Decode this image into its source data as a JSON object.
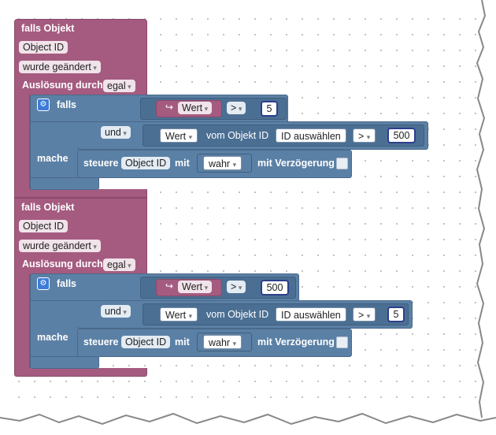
{
  "blocks": [
    {
      "falls_objekt": "falls Objekt",
      "object_id": "Object ID",
      "wurde_geaendert": "wurde geändert",
      "ausloesung_label": "Auslösung durch",
      "ausloesung_value": "egal",
      "falls": "falls",
      "wert1": "Wert",
      "op1": ">",
      "num1": "5",
      "und": "und",
      "wert2": "Wert",
      "vom_objekt": "vom Objekt ID",
      "id_auswaehlen": "ID auswählen",
      "op2": ">",
      "num2": "500",
      "mache": "mache",
      "steuere": "steuere",
      "steuere_object_id": "Object ID",
      "mit": "mit",
      "wahr": "wahr",
      "mit_verzoegerung": "mit Verzögerung"
    },
    {
      "falls_objekt": "falls Objekt",
      "object_id": "Object ID",
      "wurde_geaendert": "wurde geändert",
      "ausloesung_label": "Auslösung durch",
      "ausloesung_value": "egal",
      "falls": "falls",
      "wert1": "Wert",
      "op1": ">",
      "num1": "500",
      "und": "und",
      "wert2": "Wert",
      "vom_objekt": "vom Objekt ID",
      "id_auswaehlen": "ID auswählen",
      "op2": ">",
      "num2": "5",
      "mache": "mache",
      "steuere": "steuere",
      "steuere_object_id": "Object ID",
      "mit": "mit",
      "wahr": "wahr",
      "mit_verzoegerung": "mit Verzögerung"
    }
  ],
  "colors": {
    "trigger": "#a55b80",
    "logic": "#5b80a5",
    "workspace": "#ffffff"
  },
  "icons": {
    "gear": "gear-icon",
    "arrow": "hook-arrow-icon"
  }
}
